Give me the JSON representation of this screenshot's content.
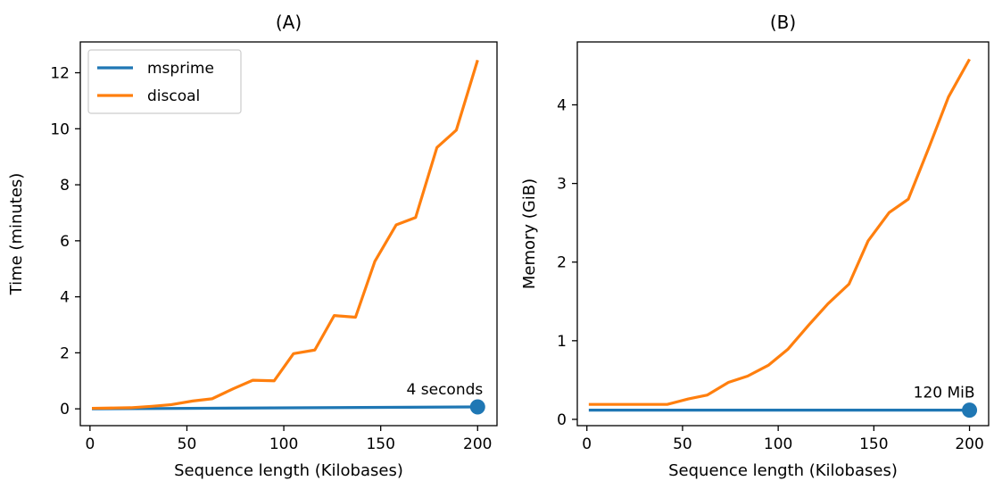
{
  "chart_data": [
    {
      "type": "line",
      "title": "(A)",
      "xlabel": "Sequence length (Kilobases)",
      "ylabel": "Time (minutes)",
      "xlim": [
        -5,
        210
      ],
      "ylim": [
        -0.6,
        13.1
      ],
      "xticks": [
        0,
        50,
        100,
        150,
        200
      ],
      "yticks": [
        0,
        2,
        4,
        6,
        8,
        10,
        12
      ],
      "grid": false,
      "legend": {
        "placement": "top-left",
        "entries": [
          "msprime",
          "discoal"
        ]
      },
      "series": [
        {
          "name": "msprime",
          "color": "#1f77b4",
          "x": [
            1,
            200
          ],
          "y": [
            0.0,
            0.07
          ]
        },
        {
          "name": "discoal",
          "color": "#ff7f0e",
          "x": [
            1,
            11,
            21,
            32,
            42,
            53,
            63,
            74,
            84,
            95,
            105,
            116,
            126,
            137,
            147,
            158,
            168,
            179,
            189,
            200
          ],
          "y": [
            0.02,
            0.03,
            0.04,
            0.09,
            0.15,
            0.28,
            0.36,
            0.72,
            1.02,
            1.0,
            1.97,
            2.1,
            3.33,
            3.27,
            5.27,
            6.57,
            6.83,
            9.33,
            9.95,
            12.45
          ]
        }
      ],
      "endpoint_marker": {
        "series": "msprime",
        "x": 200,
        "y": 0.07
      },
      "annotation": {
        "text": "4 seconds",
        "x": 200,
        "y": 0.07
      }
    },
    {
      "type": "line",
      "title": "(B)",
      "xlabel": "Sequence length (Kilobases)",
      "ylabel": "Memory (GiB)",
      "xlim": [
        -5,
        210
      ],
      "ylim": [
        -0.08,
        4.8
      ],
      "xticks": [
        0,
        50,
        100,
        150,
        200
      ],
      "yticks": [
        0,
        1,
        2,
        3,
        4
      ],
      "grid": false,
      "series": [
        {
          "name": "msprime",
          "color": "#1f77b4",
          "x": [
            1,
            200
          ],
          "y": [
            0.117,
            0.117
          ]
        },
        {
          "name": "discoal",
          "color": "#ff7f0e",
          "x": [
            1,
            11,
            21,
            32,
            42,
            53,
            63,
            74,
            84,
            95,
            105,
            116,
            126,
            137,
            147,
            158,
            168,
            179,
            189,
            200
          ],
          "y": [
            0.19,
            0.19,
            0.19,
            0.19,
            0.19,
            0.26,
            0.31,
            0.47,
            0.55,
            0.69,
            0.89,
            1.2,
            1.47,
            1.72,
            2.27,
            2.63,
            2.8,
            3.47,
            4.1,
            4.58
          ]
        }
      ],
      "endpoint_marker": {
        "series": "msprime",
        "x": 200,
        "y": 0.117
      },
      "annotation": {
        "text": "120 MiB",
        "x": 200,
        "y": 0.117
      }
    }
  ]
}
